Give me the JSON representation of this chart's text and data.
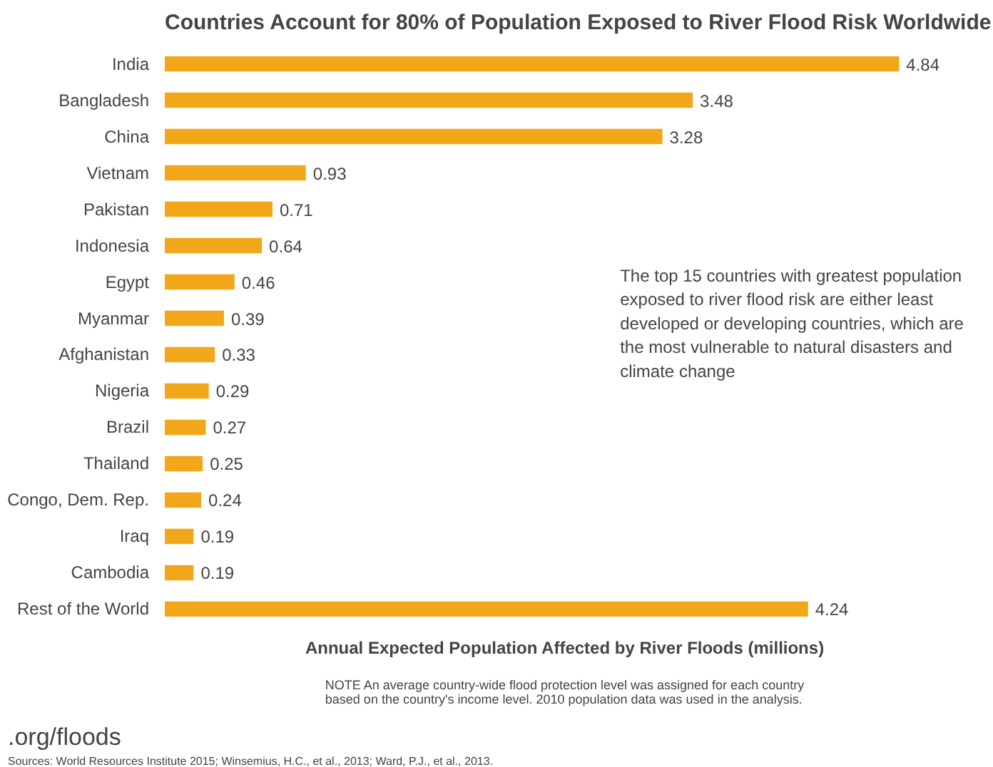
{
  "chart_data": {
    "type": "bar",
    "orientation": "horizontal",
    "title": "Countries Account for 80% of Population Exposed to River Flood Risk Worldwide",
    "xlabel": "Annual Expected Population Affected by River Floods (millions)",
    "categories": [
      "India",
      "Bangladesh",
      "China",
      "Vietnam",
      "Pakistan",
      "Indonesia",
      "Egypt",
      "Myanmar",
      "Afghanistan",
      "Nigeria",
      "Brazil",
      "Thailand",
      "Congo, Dem. Rep.",
      "Iraq",
      "Cambodia",
      "Rest of the World"
    ],
    "values": [
      4.84,
      3.48,
      3.28,
      0.93,
      0.71,
      0.64,
      0.46,
      0.39,
      0.33,
      0.29,
      0.27,
      0.25,
      0.24,
      0.19,
      0.19,
      4.24
    ],
    "color": "#f2a71b",
    "data_labels": true,
    "grid": false,
    "annotations": [
      "The top 15 countries with greatest population\nexposed to river flood risk are either least\ndeveloped or developing countries, which are\nthe most vulnerable to natural disasters and\nclimate change",
      "NOTE An average country-wide flood protection level was assigned for each country\nbased on the country's income level. 2010 population data was used in the analysis.",
      ".org/floods",
      "Sources: World Resources Institute 2015; Winsemius, H.C., et al., 2013; Ward, P.J., et al., 2013."
    ]
  }
}
